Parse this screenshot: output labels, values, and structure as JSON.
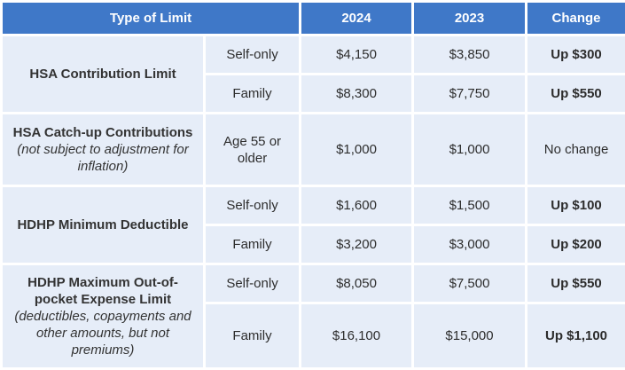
{
  "headers": {
    "type": "Type of Limit",
    "y2024": "2024",
    "y2023": "2023",
    "change": "Change"
  },
  "rows": {
    "hsa_contribution": {
      "name": "HSA Contribution Limit",
      "self": {
        "coverage": "Self-only",
        "y2024": "$4,150",
        "y2023": "$3,850",
        "change": "Up $300"
      },
      "family": {
        "coverage": "Family",
        "y2024": "$8,300",
        "y2023": "$7,750",
        "change": "Up $550"
      }
    },
    "hsa_catchup": {
      "name": "HSA Catch-up Contributions",
      "note": "(not subject to adjustment for inflation)",
      "age": {
        "coverage": "Age 55 or older",
        "y2024": "$1,000",
        "y2023": "$1,000",
        "change": "No change"
      }
    },
    "hdhp_min": {
      "name": "HDHP Minimum Deductible",
      "self": {
        "coverage": "Self-only",
        "y2024": "$1,600",
        "y2023": "$1,500",
        "change": "Up $100"
      },
      "family": {
        "coverage": "Family",
        "y2024": "$3,200",
        "y2023": "$3,000",
        "change": "Up $200"
      }
    },
    "hdhp_max": {
      "name": "HDHP Maximum Out-of-pocket Expense Limit",
      "note": "(deductibles, copayments and other amounts, but not premiums)",
      "self": {
        "coverage": "Self-only",
        "y2024": "$8,050",
        "y2023": "$7,500",
        "change": "Up $550"
      },
      "family": {
        "coverage": "Family",
        "y2024": "$16,100",
        "y2023": "$15,000",
        "change": "Up $1,100"
      }
    }
  }
}
